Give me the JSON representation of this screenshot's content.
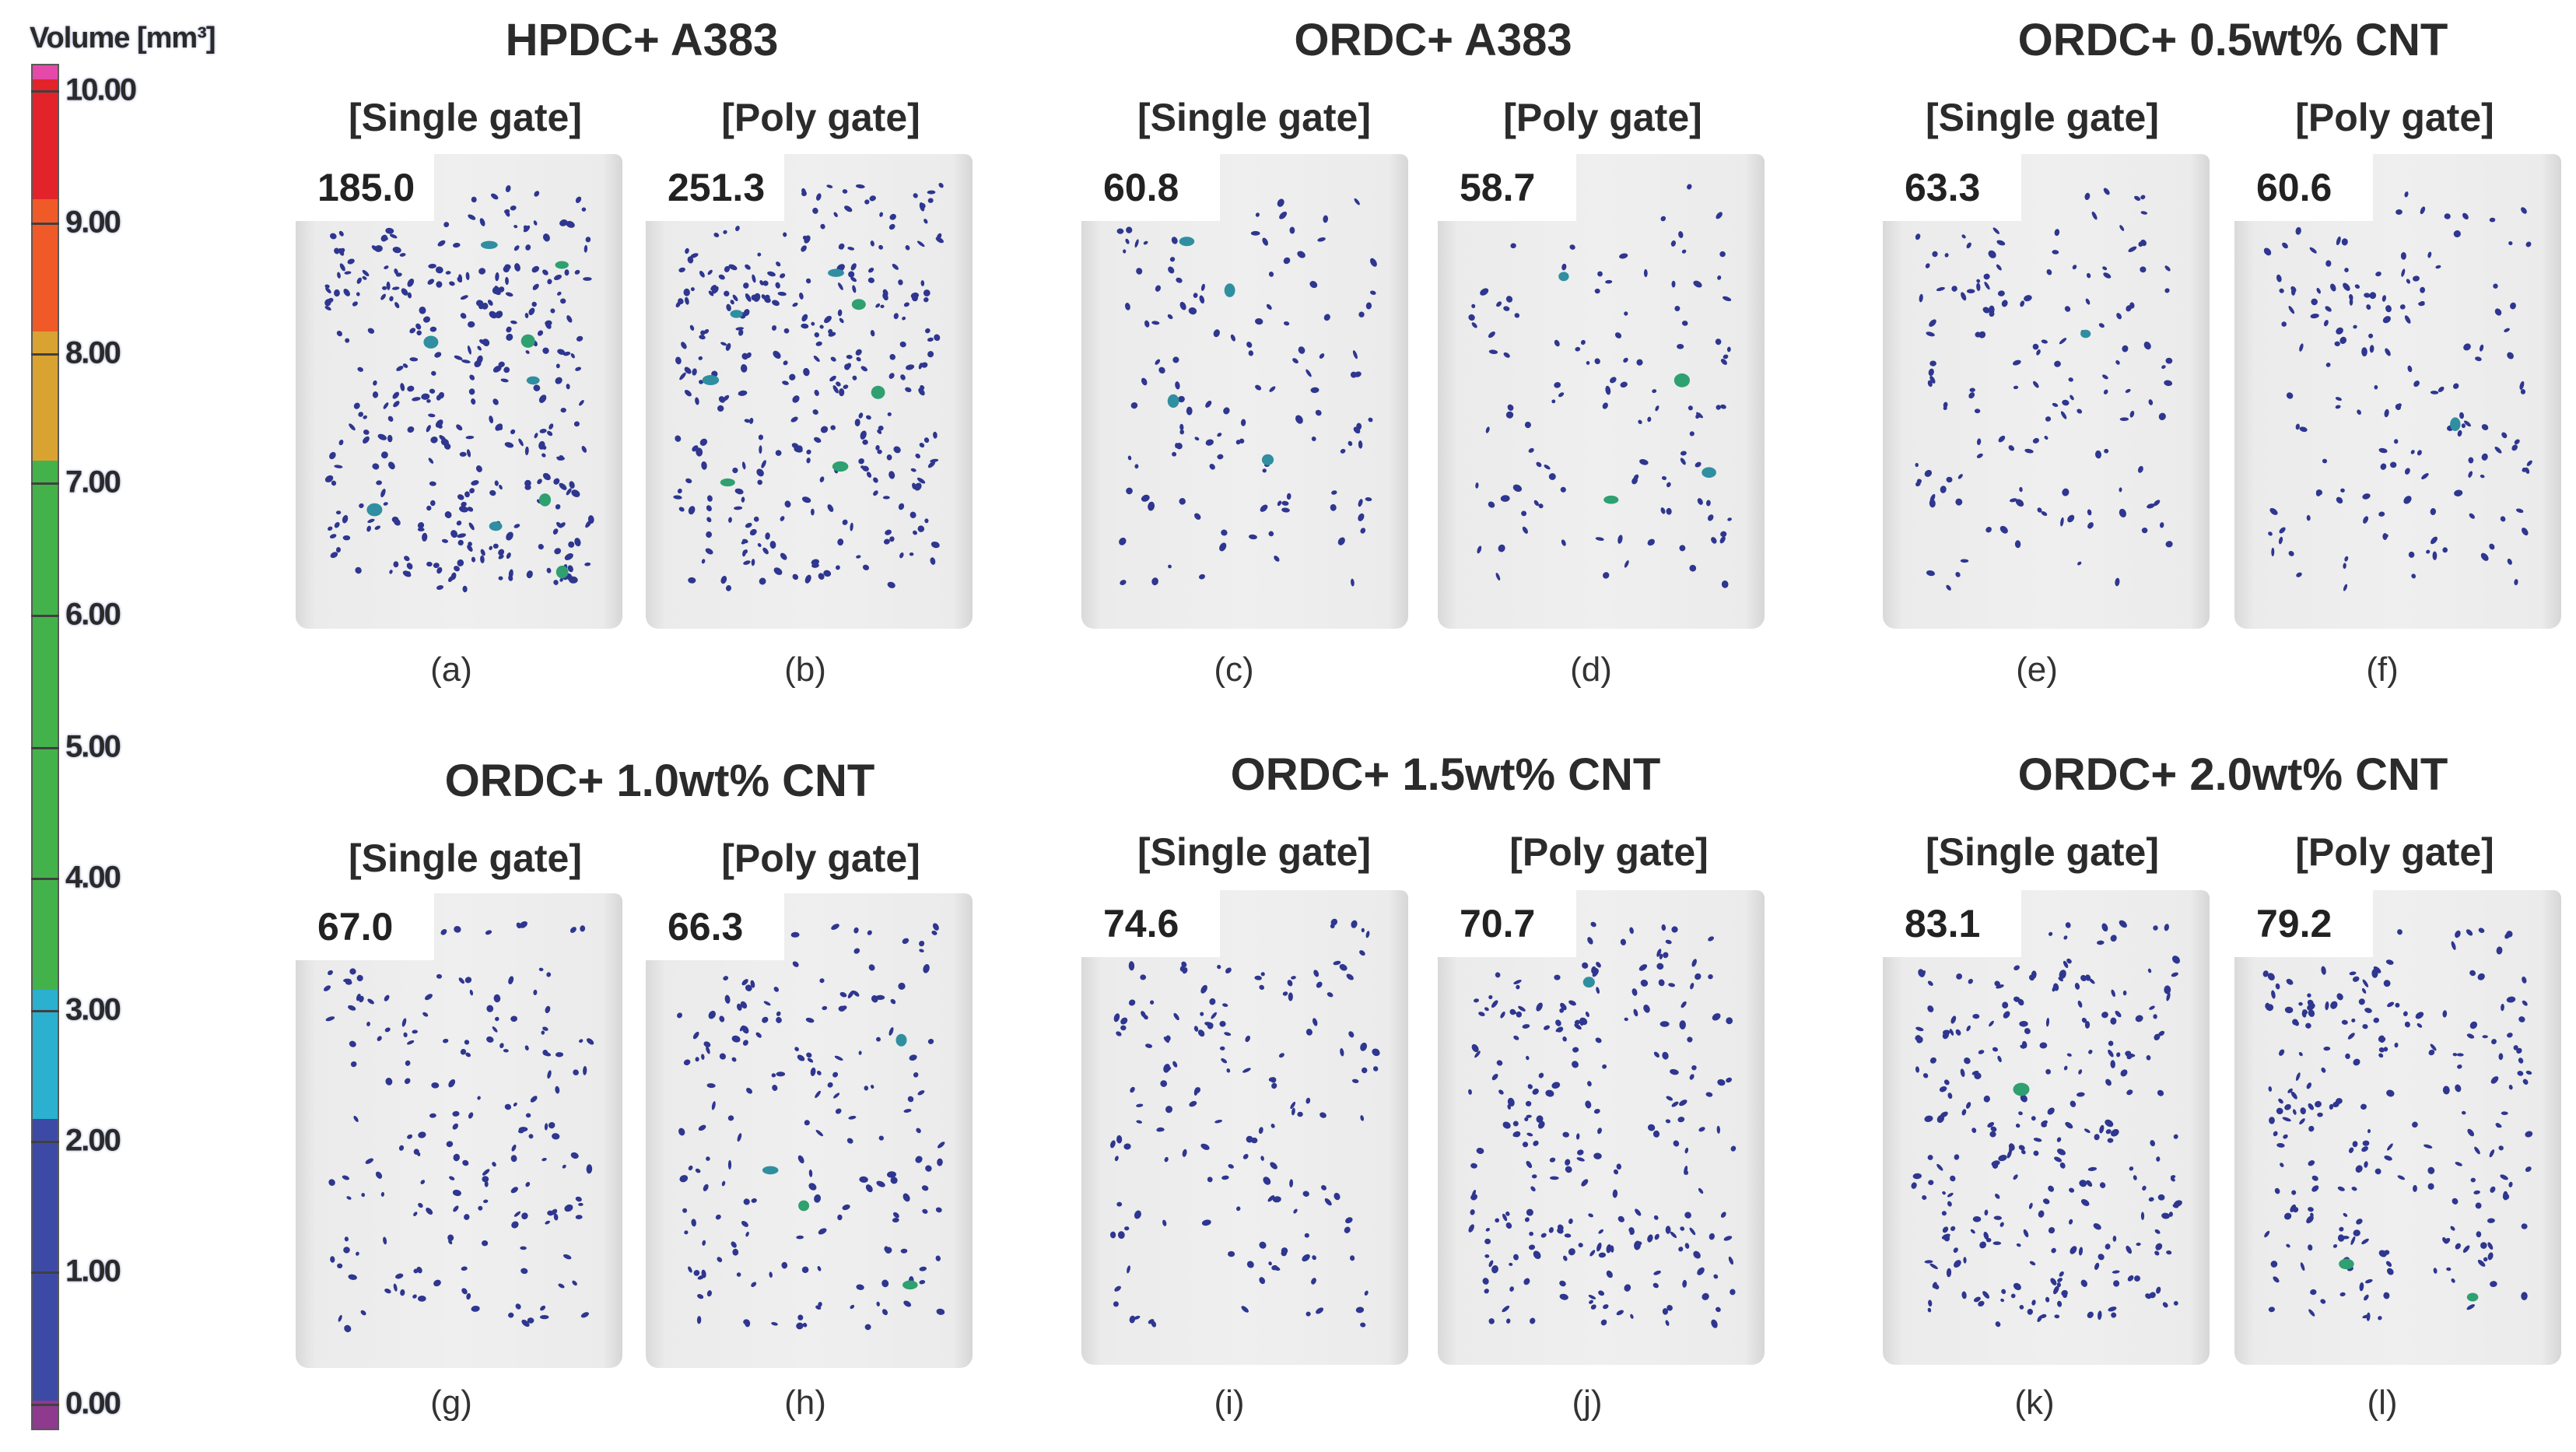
{
  "legend": {
    "title": "Volume [mm³]",
    "ticks": [
      "10.00",
      "9.00",
      "8.00",
      "7.00",
      "6.00",
      "5.00",
      "4.00",
      "3.00",
      "2.00",
      "1.00",
      "0.00"
    ],
    "colors": {
      "top": "#e64aa8",
      "band_9_10": "#e2232a",
      "band_8_9": "#f05a28",
      "band_7_8": "#d9a332",
      "band_3_7": "#44b24a",
      "band_2_3": "#2bb0d0",
      "band_0_2": "#3c4aa5",
      "bottom": "#8e3a8e"
    }
  },
  "groups": [
    {
      "title": "HPDC+ A383"
    },
    {
      "title": "ORDC+ A383"
    },
    {
      "title": "ORDC+ 0.5wt% CNT"
    },
    {
      "title": "ORDC+ 1.0wt% CNT"
    },
    {
      "title": "ORDC+ 1.5wt% CNT"
    },
    {
      "title": "ORDC+ 2.0wt% CNT"
    }
  ],
  "gate_labels": {
    "single": "[Single gate]",
    "poly": "[Poly gate]"
  },
  "panels": [
    {
      "label": "(a)",
      "value": "185.0",
      "gate": "single"
    },
    {
      "label": "(b)",
      "value": "251.3",
      "gate": "poly"
    },
    {
      "label": "(c)",
      "value": "60.8",
      "gate": "single"
    },
    {
      "label": "(d)",
      "value": "58.7",
      "gate": "poly"
    },
    {
      "label": "(e)",
      "value": "63.3",
      "gate": "single"
    },
    {
      "label": "(f)",
      "value": "60.6",
      "gate": "poly"
    },
    {
      "label": "(g)",
      "value": "67.0",
      "gate": "single"
    },
    {
      "label": "(h)",
      "value": "66.3",
      "gate": "poly"
    },
    {
      "label": "(i)",
      "value": "74.6",
      "gate": "single"
    },
    {
      "label": "(j)",
      "value": "70.7",
      "gate": "poly"
    },
    {
      "label": "(k)",
      "value": "83.1",
      "gate": "single"
    },
    {
      "label": "(l)",
      "value": "79.2",
      "gate": "poly"
    }
  ],
  "pore_colors": {
    "small": "#2e3690",
    "medium": "#2f8fa0",
    "large": "#2fa070"
  }
}
